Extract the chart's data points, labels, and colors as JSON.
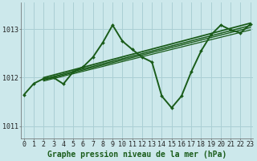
{
  "background_color": "#cce8eb",
  "grid_color": "#aacfd4",
  "line_color": "#1a5c1a",
  "marker_color": "#1a5c1a",
  "xlabel": "Graphe pression niveau de la mer (hPa)",
  "xlabel_fontsize": 7,
  "tick_fontsize": 6,
  "yticks": [
    1011,
    1012,
    1013
  ],
  "ylim": [
    1010.75,
    1013.55
  ],
  "xlim": [
    -0.3,
    23.3
  ],
  "xticks": [
    0,
    1,
    2,
    3,
    4,
    5,
    6,
    7,
    8,
    9,
    10,
    11,
    12,
    13,
    14,
    15,
    16,
    17,
    18,
    19,
    20,
    21,
    22,
    23
  ],
  "series": [
    {
      "x": [
        0,
        1,
        2,
        3,
        4,
        5,
        6,
        7,
        8,
        9,
        10,
        11,
        12,
        13,
        14,
        15,
        16,
        17,
        18,
        19,
        20,
        21,
        22,
        23
      ],
      "y": [
        1011.65,
        1011.88,
        1011.98,
        1012.0,
        1011.87,
        1012.12,
        1012.22,
        1012.42,
        1012.72,
        1013.08,
        1012.75,
        1012.58,
        1012.42,
        1012.32,
        1011.62,
        1011.38,
        1011.62,
        1012.12,
        1012.55,
        1012.88,
        1013.08,
        1012.98,
        1012.92,
        1013.1
      ],
      "lw": 1.4,
      "with_markers": true
    },
    {
      "x": [
        2,
        23
      ],
      "y": [
        1012.0,
        1013.12
      ],
      "lw": 1.3,
      "with_markers": false
    },
    {
      "x": [
        2,
        23
      ],
      "y": [
        1011.97,
        1013.07
      ],
      "lw": 1.1,
      "with_markers": false
    },
    {
      "x": [
        2,
        23
      ],
      "y": [
        1011.95,
        1013.03
      ],
      "lw": 1.0,
      "with_markers": false
    },
    {
      "x": [
        2,
        23
      ],
      "y": [
        1011.93,
        1012.98
      ],
      "lw": 0.9,
      "with_markers": false
    }
  ]
}
